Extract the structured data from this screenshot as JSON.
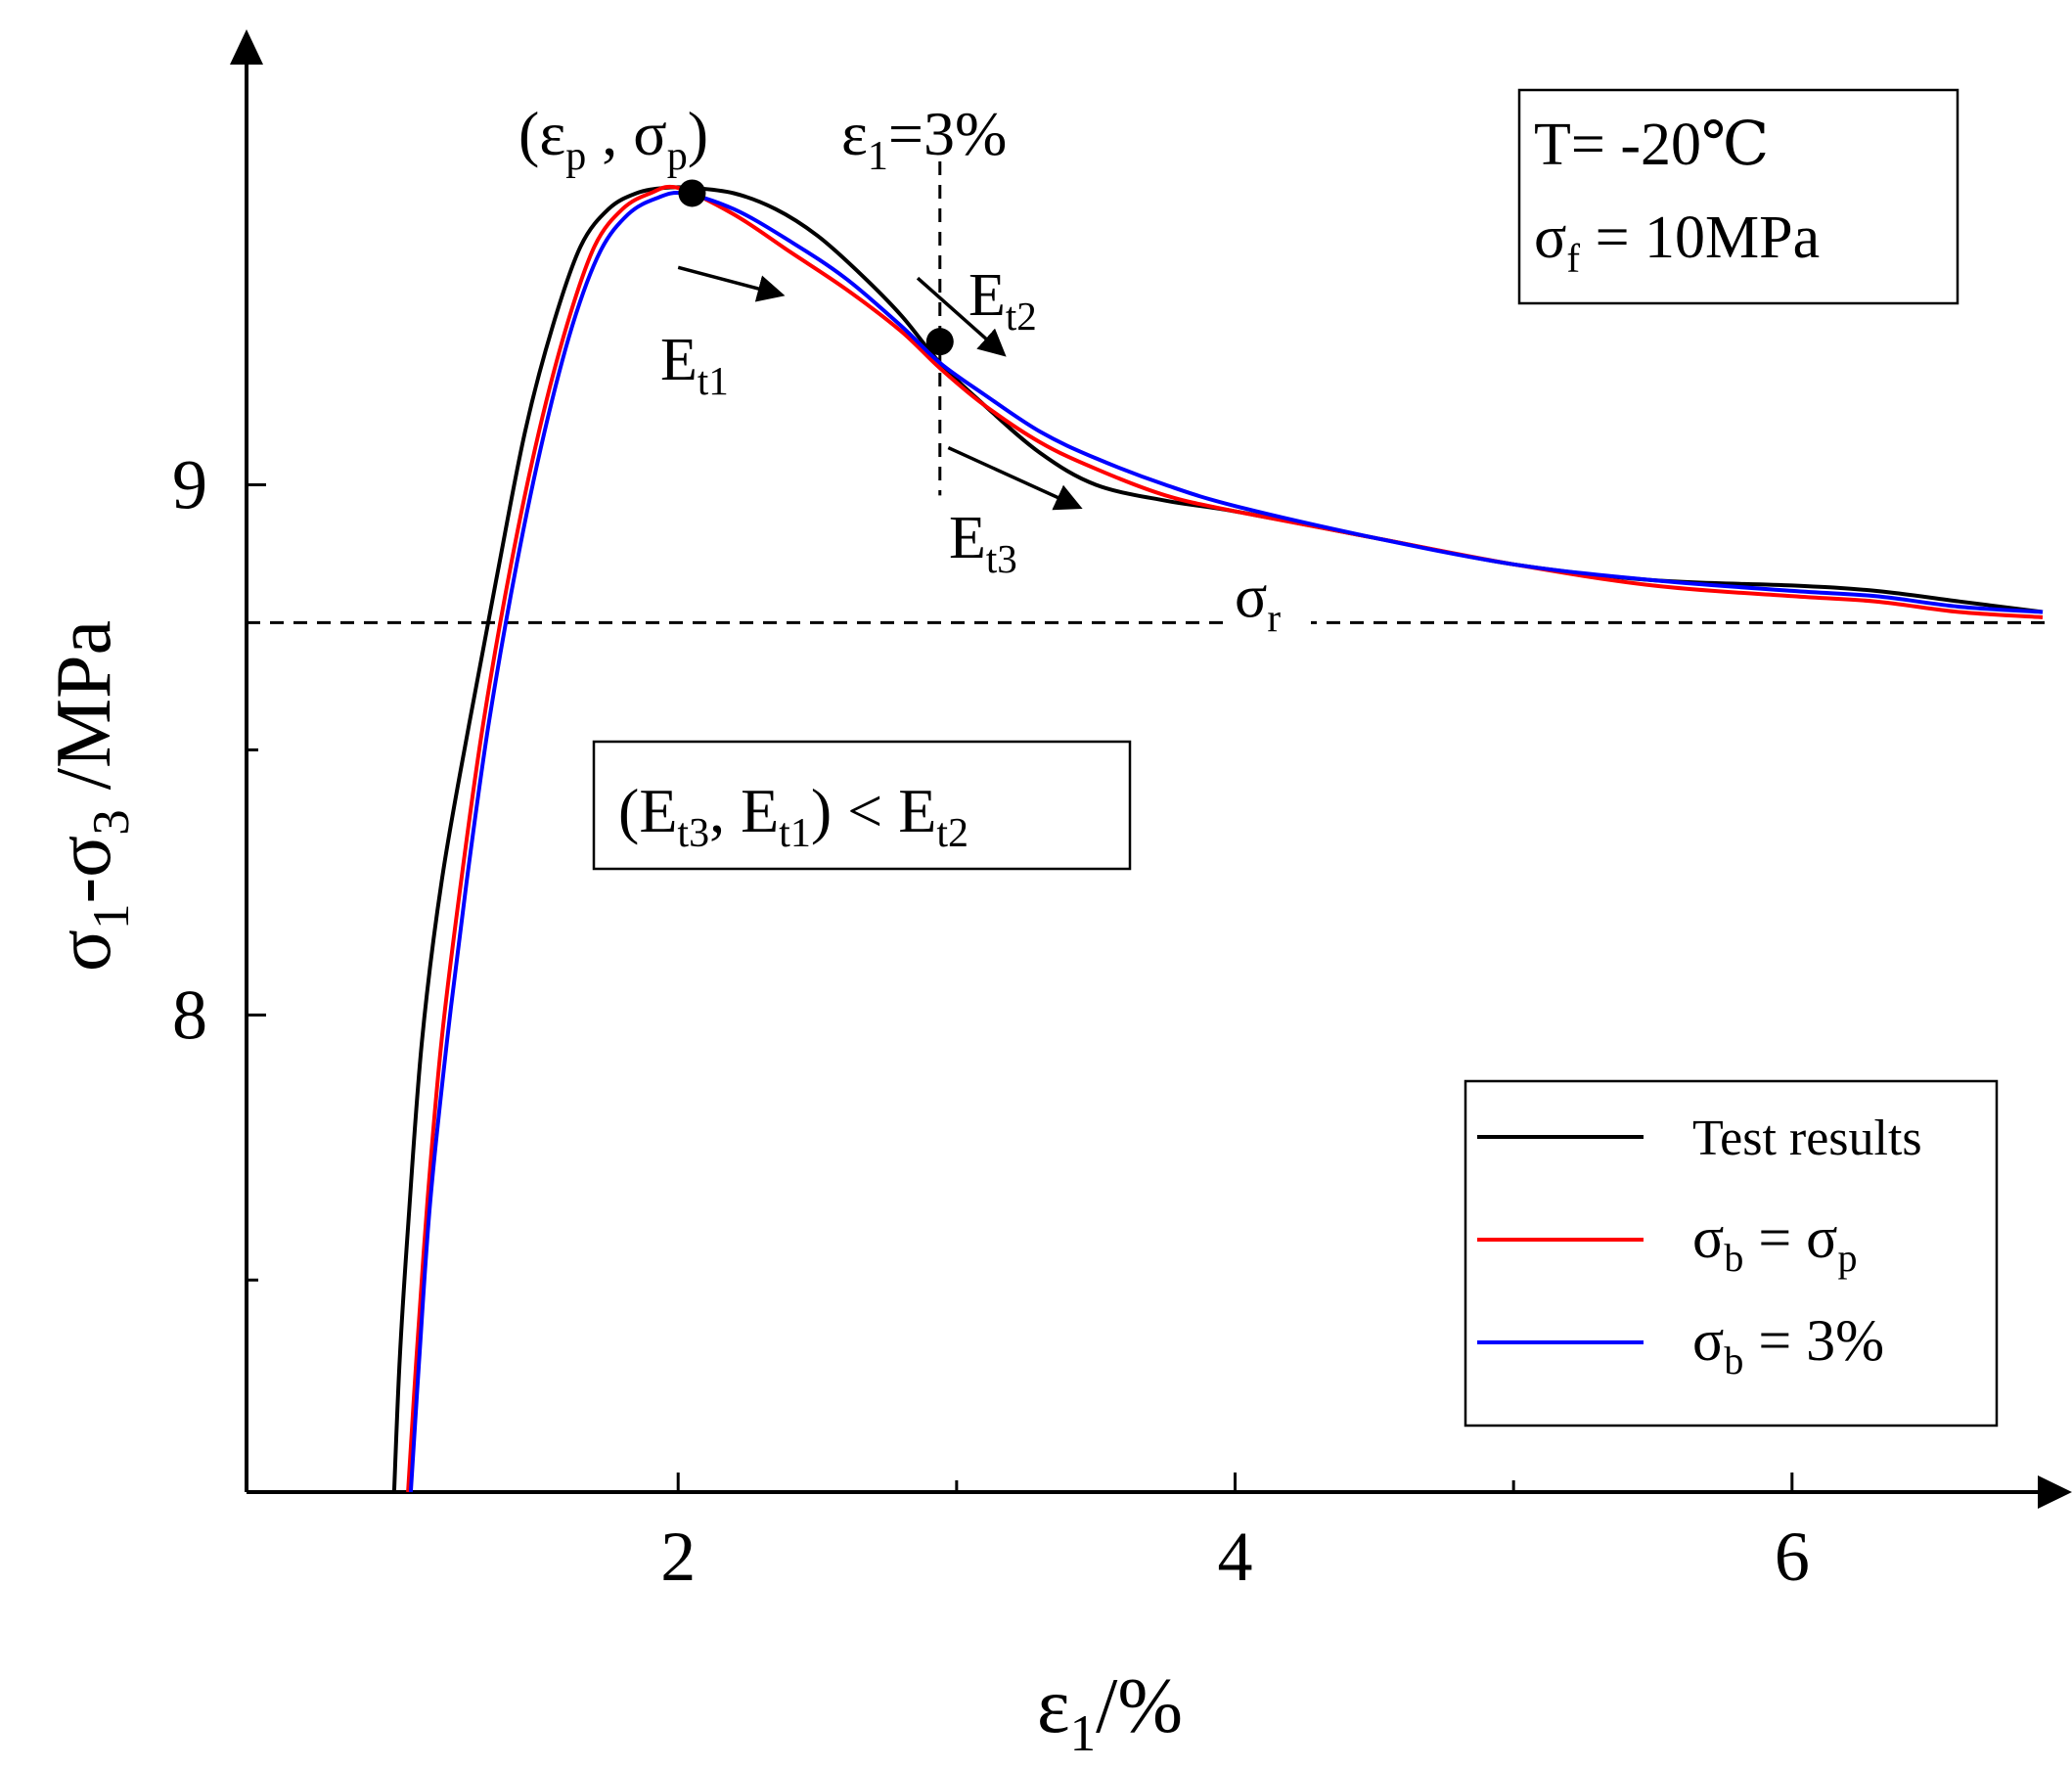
{
  "chart_data": {
    "type": "line",
    "title": "",
    "xlabel": {
      "main": "ε",
      "sub": "1",
      "tail": "/%"
    },
    "ylabel": {
      "parts": [
        [
          "σ",
          ""
        ],
        [
          "1",
          "sub"
        ],
        [
          "-σ",
          ""
        ],
        [
          "3",
          "sub"
        ],
        [
          " /MPa",
          ""
        ]
      ]
    },
    "xlim": [
      0.45,
      6.9
    ],
    "ylim": [
      7.1,
      9.8
    ],
    "xticks": [
      2,
      4,
      6
    ],
    "xticks_minor": [
      3,
      5
    ],
    "yticks": [
      8,
      9
    ],
    "yticks_minor": [
      7.5,
      8.5
    ],
    "grid": false,
    "legend_position": "bottom-right",
    "series": [
      {
        "name": "Test results",
        "color": "#000000",
        "x": [
          0.98,
          1.0,
          1.03,
          1.08,
          1.15,
          1.25,
          1.35,
          1.45,
          1.55,
          1.65,
          1.75,
          1.85,
          1.95,
          2.05,
          2.2,
          2.35,
          2.5,
          2.65,
          2.8,
          2.94,
          3.1,
          3.3,
          3.5,
          3.75,
          4.0,
          4.5,
          5.0,
          5.5,
          6.0,
          6.3,
          6.6,
          6.9
        ],
        "y": [
          7.1,
          7.35,
          7.6,
          7.95,
          8.25,
          8.55,
          8.83,
          9.1,
          9.3,
          9.45,
          9.52,
          9.55,
          9.56,
          9.56,
          9.55,
          9.52,
          9.47,
          9.4,
          9.32,
          9.23,
          9.15,
          9.06,
          9.0,
          8.97,
          8.95,
          8.9,
          8.85,
          8.82,
          8.81,
          8.8,
          8.78,
          8.76
        ]
      },
      {
        "name": "σb = σp",
        "color": "#ff0000",
        "x": [
          1.03,
          1.06,
          1.1,
          1.15,
          1.22,
          1.3,
          1.4,
          1.5,
          1.6,
          1.7,
          1.8,
          1.9,
          2.0,
          2.2,
          2.4,
          2.6,
          2.8,
          2.94,
          3.1,
          3.3,
          3.5,
          3.75,
          4.0,
          4.5,
          5.0,
          5.5,
          6.0,
          6.3,
          6.6,
          6.9
        ],
        "y": [
          7.1,
          7.35,
          7.65,
          7.95,
          8.25,
          8.55,
          8.85,
          9.1,
          9.3,
          9.45,
          9.52,
          9.55,
          9.56,
          9.51,
          9.44,
          9.37,
          9.29,
          9.22,
          9.15,
          9.08,
          9.03,
          8.98,
          8.95,
          8.9,
          8.85,
          8.81,
          8.79,
          8.78,
          8.76,
          8.75
        ]
      },
      {
        "name": "σb = 3%",
        "color": "#0000ff",
        "x": [
          1.04,
          1.07,
          1.11,
          1.17,
          1.24,
          1.32,
          1.42,
          1.52,
          1.62,
          1.72,
          1.82,
          1.92,
          2.02,
          2.2,
          2.4,
          2.6,
          2.8,
          2.94,
          3.1,
          3.3,
          3.5,
          3.75,
          4.0,
          4.5,
          5.0,
          5.5,
          6.0,
          6.3,
          6.6,
          6.9
        ],
        "y": [
          7.1,
          7.35,
          7.65,
          7.95,
          8.25,
          8.55,
          8.85,
          9.1,
          9.3,
          9.44,
          9.51,
          9.54,
          9.55,
          9.52,
          9.46,
          9.39,
          9.3,
          9.23,
          9.17,
          9.1,
          9.05,
          9.0,
          8.96,
          8.9,
          8.85,
          8.82,
          8.8,
          8.79,
          8.77,
          8.76
        ]
      }
    ],
    "reference_lines": [
      {
        "orientation": "horizontal",
        "value": 8.74,
        "style": "dashed",
        "label": {
          "main": "σ",
          "sub": "r"
        }
      },
      {
        "orientation": "vertical",
        "value": 2.94,
        "y_range": [
          8.98,
          9.61
        ],
        "style": "dashed",
        "label": {
          "parts": [
            [
              "ε",
              ""
            ],
            [
              "1",
              "sub"
            ],
            [
              "=3%",
              ""
            ]
          ]
        }
      }
    ],
    "markers": [
      {
        "x": 2.05,
        "y": 9.55,
        "label": {
          "parts": [
            [
              "(ε",
              ""
            ],
            [
              "p",
              "sub"
            ],
            [
              " , σ",
              ""
            ],
            [
              "p",
              "sub"
            ],
            [
              ")",
              ""
            ]
          ]
        }
      },
      {
        "x": 2.94,
        "y": 9.27,
        "label": null
      }
    ],
    "annotations": [
      {
        "name": "Et1",
        "label": {
          "main": "E",
          "sub": "t1"
        },
        "arrow_from": [
          2.0,
          9.41
        ],
        "arrow_to": [
          2.36,
          9.36
        ]
      },
      {
        "name": "Et2",
        "label": {
          "main": "E",
          "sub": "t2"
        },
        "arrow_from": [
          2.86,
          9.39
        ],
        "arrow_to": [
          3.16,
          9.25
        ]
      },
      {
        "name": "Et3",
        "label": {
          "main": "E",
          "sub": "t3"
        },
        "arrow_from": [
          2.97,
          9.07
        ],
        "arrow_to": [
          3.43,
          8.96
        ]
      }
    ],
    "info_box": {
      "lines": [
        {
          "parts": [
            [
              "T= -20℃",
              ""
            ]
          ]
        },
        {
          "parts": [
            [
              "σ",
              ""
            ],
            [
              "f",
              "sub"
            ],
            [
              " = 10MPa",
              ""
            ]
          ]
        }
      ]
    },
    "condition_box": {
      "parts": [
        [
          "(E",
          ""
        ],
        [
          "t3",
          "sub"
        ],
        [
          ", E",
          ""
        ],
        [
          "t1",
          "sub"
        ],
        [
          ") < E",
          ""
        ],
        [
          "t2",
          "sub"
        ]
      ]
    },
    "legend": [
      {
        "series": 0,
        "parts": [
          [
            "Test results",
            ""
          ]
        ]
      },
      {
        "series": 1,
        "parts": [
          [
            "σ",
            ""
          ],
          [
            "b",
            "sub"
          ],
          [
            " = σ",
            ""
          ],
          [
            "p",
            "sub"
          ]
        ]
      },
      {
        "series": 2,
        "parts": [
          [
            "σ",
            ""
          ],
          [
            "b",
            "sub"
          ],
          [
            " = 3%",
            ""
          ]
        ]
      }
    ]
  }
}
